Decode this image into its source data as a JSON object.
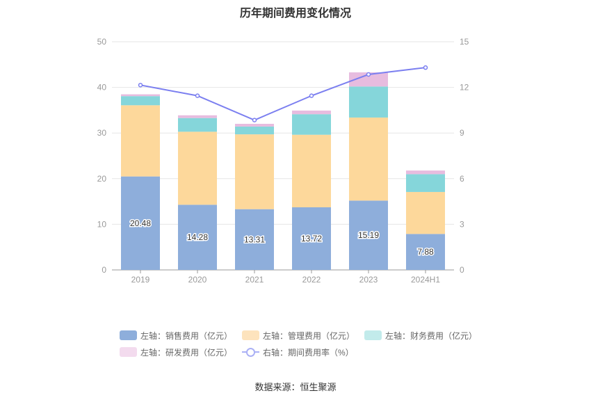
{
  "chart_data": {
    "type": "bar",
    "stacked": true,
    "title": "历年期间费用变化情况",
    "categories": [
      "2019",
      "2020",
      "2021",
      "2022",
      "2023",
      "2024H1"
    ],
    "left_axis": {
      "min": 0,
      "max": 50,
      "ticks": [
        "0",
        "10",
        "20",
        "30",
        "40",
        "50"
      ]
    },
    "right_axis": {
      "min": 0,
      "max": 15,
      "ticks": [
        "0",
        "3",
        "6",
        "9",
        "12",
        "15"
      ]
    },
    "series": [
      {
        "name": "左轴：销售费用（亿元）",
        "axis": "left",
        "color": "#8eaedb",
        "values": [
          20.48,
          14.28,
          13.31,
          13.72,
          15.19,
          7.88
        ],
        "labels": [
          "20.48",
          "14.28",
          "13.31",
          "13.72",
          "15.19",
          "7.88"
        ]
      },
      {
        "name": "左轴：管理费用（亿元）",
        "axis": "left",
        "color": "#fdd89b",
        "values": [
          15.6,
          16.0,
          16.4,
          15.9,
          18.2,
          9.2
        ]
      },
      {
        "name": "左轴：财务费用（亿元）",
        "axis": "left",
        "color": "#85d6da",
        "values": [
          2.0,
          3.0,
          1.7,
          4.5,
          6.8,
          3.9
        ]
      },
      {
        "name": "左轴：研发费用（亿元）",
        "axis": "left",
        "color": "#e7bcdf",
        "values": [
          0.4,
          0.6,
          0.6,
          0.8,
          3.1,
          0.8
        ]
      },
      {
        "name": "右轴：期间费用率（%）",
        "axis": "right",
        "type": "line",
        "color": "#7b7ff0",
        "values": [
          12.15,
          11.45,
          9.85,
          11.45,
          12.85,
          13.3
        ]
      }
    ],
    "legend_position": "bottom",
    "grid": true
  },
  "legend": {
    "row1": [
      "左轴：销售费用（亿元）",
      "左轴：管理费用（亿元）",
      "左轴：财务费用（亿元）"
    ],
    "row2": [
      "左轴：研发费用（亿元）",
      "右轴：期间费用率（%）"
    ]
  },
  "colors": {
    "legend_sales": "#8eaedb",
    "legend_admin": "#fde3bd",
    "legend_finance": "#c2ebeb",
    "legend_rd": "#f3dbee"
  },
  "source": "数据来源：恒生聚源"
}
